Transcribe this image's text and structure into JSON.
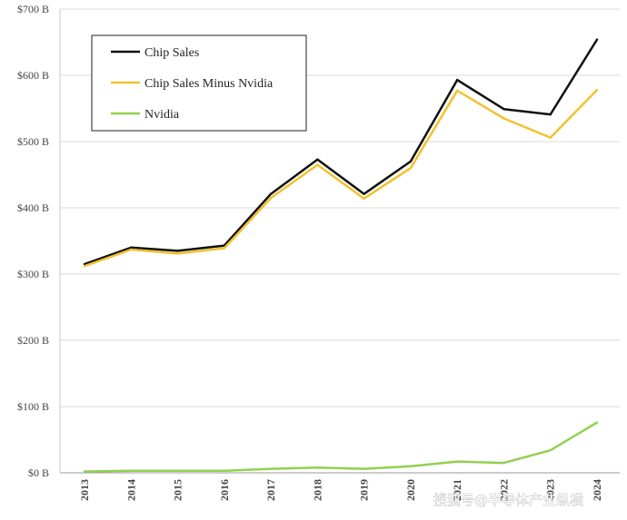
{
  "chart_data": {
    "type": "line",
    "title": "",
    "xlabel": "",
    "ylabel": "",
    "categories": [
      "2013",
      "2014",
      "2015",
      "2016",
      "2017",
      "2018",
      "2019",
      "2020",
      "2021",
      "2022",
      "2023",
      "2024"
    ],
    "series": [
      {
        "name": "Chip Sales",
        "color": "#111111",
        "values": [
          315,
          340,
          335,
          343,
          421,
          473,
          421,
          470,
          593,
          549,
          541,
          654
        ]
      },
      {
        "name": "Chip Sales Minus Nvidia",
        "color": "#f2c12e",
        "values": [
          312,
          337,
          331,
          339,
          415,
          465,
          414,
          460,
          577,
          535,
          506,
          578
        ]
      },
      {
        "name": "Nvidia",
        "color": "#92d050",
        "values": [
          2,
          3,
          3,
          3,
          6,
          8,
          6,
          10,
          17,
          15,
          34,
          76
        ]
      }
    ],
    "yticks": [
      0,
      100,
      200,
      300,
      400,
      500,
      600,
      700
    ],
    "ytick_labels": [
      "$0 B",
      "$100 B",
      "$200 B",
      "$300 B",
      "$400 B",
      "$500 B",
      "$600 B",
      "$700 B"
    ],
    "ylim": [
      0,
      700
    ],
    "grid": true,
    "legend_position": "top-left"
  },
  "watermark": {
    "text": "搜狐号@半导体产业纵横"
  }
}
